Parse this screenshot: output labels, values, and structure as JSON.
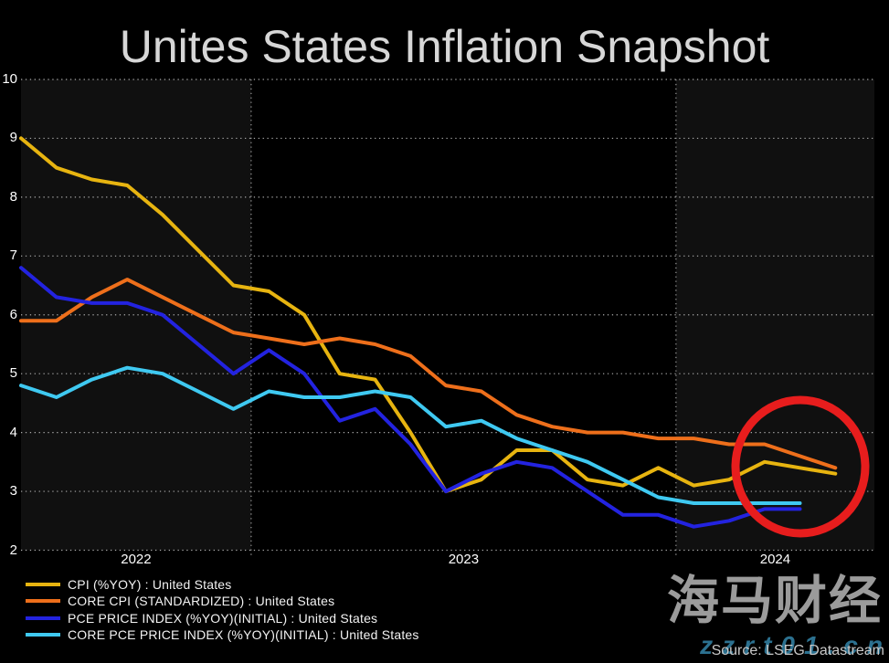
{
  "title": "Unites States Inflation Snapshot",
  "source": "Source: LSEG Datastream",
  "watermark": {
    "brand": "海马财经",
    "url": "zzrt01.cn"
  },
  "chart_data": {
    "type": "line",
    "x": [
      "Jun 2022",
      "Jul 2022",
      "Aug 2022",
      "Sep 2022",
      "Oct 2022",
      "Nov 2022",
      "Dec 2022",
      "Jan 2023",
      "Feb 2023",
      "Mar 2023",
      "Apr 2023",
      "May 2023",
      "Jun 2023",
      "Jul 2023",
      "Aug 2023",
      "Sep 2023",
      "Oct 2023",
      "Nov 2023",
      "Dec 2023",
      "Jan 2024",
      "Feb 2024",
      "Mar 2024",
      "Apr 2024",
      "May 2024"
    ],
    "series": [
      {
        "key": "cpi",
        "name": "CPI (%YOY) : United States",
        "color": "#e7b410",
        "values": [
          9.0,
          8.5,
          8.3,
          8.2,
          7.7,
          7.1,
          6.5,
          6.4,
          6.0,
          5.0,
          4.9,
          4.0,
          3.0,
          3.2,
          3.7,
          3.7,
          3.2,
          3.1,
          3.4,
          3.1,
          3.2,
          3.5,
          3.4,
          3.3
        ]
      },
      {
        "key": "core-cpi",
        "name": "CORE CPI (STANDARDIZED) : United States",
        "color": "#ee6f1b",
        "values": [
          5.9,
          5.9,
          6.3,
          6.6,
          6.3,
          6.0,
          5.7,
          5.6,
          5.5,
          5.6,
          5.5,
          5.3,
          4.8,
          4.7,
          4.3,
          4.1,
          4.0,
          4.0,
          3.9,
          3.9,
          3.8,
          3.8,
          3.6,
          3.4
        ]
      },
      {
        "key": "pce",
        "name": "PCE PRICE INDEX (%YOY)(INITIAL) : United States",
        "color": "#2323e0",
        "values": [
          6.8,
          6.3,
          6.2,
          6.2,
          6.0,
          5.5,
          5.0,
          5.4,
          5.0,
          4.2,
          4.4,
          3.8,
          3.0,
          3.3,
          3.5,
          3.4,
          3.0,
          2.6,
          2.6,
          2.4,
          2.5,
          2.7,
          2.7
        ]
      },
      {
        "key": "core-pce",
        "name": "CORE PCE PRICE INDEX (%YOY)(INITIAL) : United States",
        "color": "#3fc9f1",
        "values": [
          4.8,
          4.6,
          4.9,
          5.1,
          5.0,
          4.7,
          4.4,
          4.7,
          4.6,
          4.6,
          4.7,
          4.6,
          4.1,
          4.2,
          3.9,
          3.7,
          3.5,
          3.2,
          2.9,
          2.8,
          2.8,
          2.8,
          2.8
        ]
      }
    ],
    "ylabel": "",
    "xlabel": "",
    "ylim": [
      2,
      10
    ],
    "yticks": [
      10,
      9,
      8,
      7,
      6,
      5,
      4,
      3,
      2
    ],
    "x_year_labels": [
      "2022",
      "2023",
      "2024"
    ],
    "year_boundary_month_indices": [
      7,
      19
    ],
    "grid": "dotted horizontal gridlines, dotted vertical year boundaries, alternating year shading",
    "legend_position": "bottom-left",
    "annotation": {
      "type": "circle",
      "color": "#e71d1d",
      "note": "red circle highlighting latest 2024 readings"
    }
  }
}
